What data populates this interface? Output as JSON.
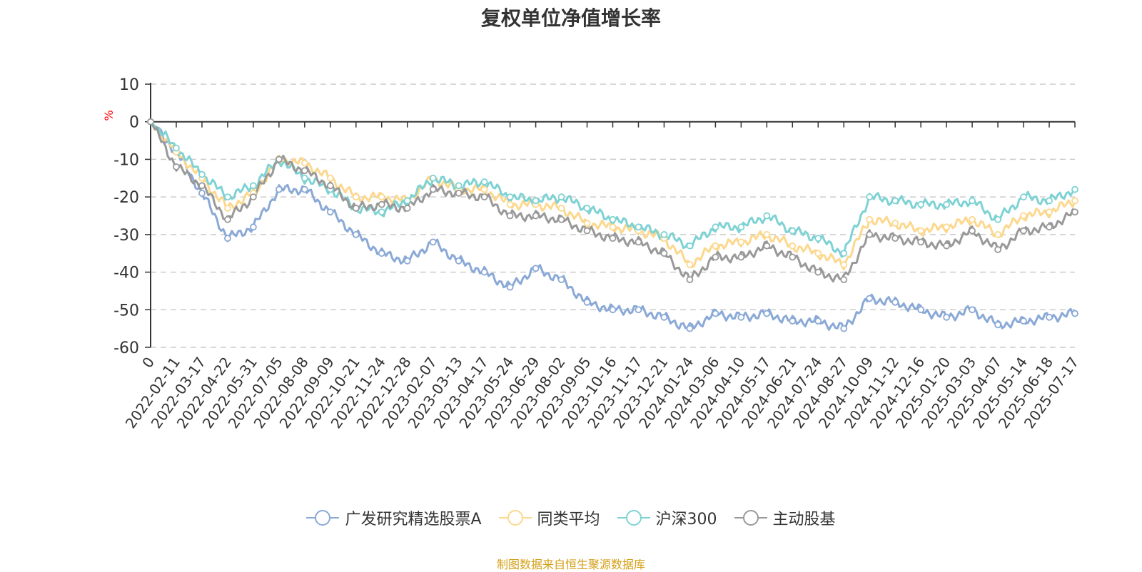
{
  "chart_data": {
    "type": "line",
    "title": "复权单位净值增长率",
    "ylabel": "%",
    "ylim": [
      -60,
      10
    ],
    "yticks": [
      10,
      0,
      -10,
      -20,
      -30,
      -40,
      -50,
      -60
    ],
    "x_first_label": "0",
    "x_tick_labels": [
      "2022-02-11",
      "2022-03-17",
      "2022-04-22",
      "2022-05-31",
      "2022-07-05",
      "2022-08-08",
      "2022-09-09",
      "2022-10-21",
      "2022-11-24",
      "2022-12-28",
      "2023-02-07",
      "2023-03-13",
      "2023-04-17",
      "2023-05-24",
      "2023-06-29",
      "2023-08-02",
      "2023-09-05",
      "2023-10-16",
      "2023-11-17",
      "2023-12-21",
      "2024-01-24",
      "2024-03-06",
      "2024-04-10",
      "2024-05-17",
      "2024-06-21",
      "2024-07-24",
      "2024-08-27",
      "2024-10-09",
      "2024-11-12",
      "2024-12-16",
      "2025-01-20",
      "2025-03-03",
      "2025-04-07",
      "2025-05-14",
      "2025-06-18",
      "2025-07-17"
    ],
    "grid": true,
    "legend_position": "bottom",
    "series": [
      {
        "name": "广发研究精选股票A",
        "color": "#8aa9d6",
        "values": [
          0,
          -8,
          -19,
          -31,
          -28,
          -18,
          -18,
          -24,
          -30,
          -35,
          -37,
          -32,
          -37,
          -40,
          -44,
          -39,
          -42,
          -48,
          -50,
          -50,
          -52,
          -55,
          -51,
          -52,
          -51,
          -53,
          -53,
          -55,
          -47,
          -48,
          -50,
          -52,
          -50,
          -54,
          -53,
          -52,
          -51
        ]
      },
      {
        "name": "同类平均",
        "color": "#fcd88e",
        "values": [
          0,
          -8,
          -15,
          -23,
          -19,
          -10,
          -11,
          -15,
          -20,
          -20,
          -21,
          -15,
          -18,
          -18,
          -22,
          -22,
          -23,
          -27,
          -28,
          -29,
          -31,
          -38,
          -33,
          -32,
          -30,
          -33,
          -35,
          -38,
          -26,
          -27,
          -29,
          -28,
          -26,
          -30,
          -25,
          -24,
          -21
        ]
      },
      {
        "name": "沪深300",
        "color": "#7fd2d4",
        "values": [
          0,
          -7,
          -14,
          -20,
          -17,
          -10,
          -15,
          -18,
          -23,
          -24,
          -21,
          -15,
          -17,
          -16,
          -20,
          -21,
          -20,
          -23,
          -26,
          -28,
          -30,
          -33,
          -28,
          -28,
          -25,
          -29,
          -31,
          -35,
          -20,
          -21,
          -22,
          -22,
          -21,
          -26,
          -20,
          -21,
          -18
        ]
      },
      {
        "name": "主动股基",
        "color": "#999999",
        "values": [
          0,
          -12,
          -17,
          -26,
          -20,
          -10,
          -13,
          -17,
          -23,
          -22,
          -23,
          -18,
          -19,
          -20,
          -25,
          -25,
          -26,
          -29,
          -31,
          -32,
          -35,
          -42,
          -36,
          -36,
          -33,
          -36,
          -40,
          -42,
          -30,
          -31,
          -32,
          -33,
          -29,
          -34,
          -29,
          -28,
          -24
        ]
      }
    ]
  },
  "source_note": "制图数据来自恒生聚源数据库"
}
